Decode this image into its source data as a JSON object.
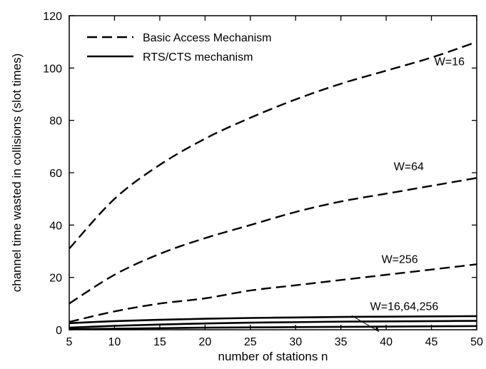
{
  "chart_data": {
    "type": "line",
    "title": "",
    "xlabel": "number of stations n",
    "ylabel": "channel time wasted in collisions (slot times)",
    "xlim": [
      5,
      50
    ],
    "ylim": [
      0,
      120
    ],
    "xticks": [
      5,
      10,
      15,
      20,
      25,
      30,
      35,
      40,
      45,
      50
    ],
    "yticks": [
      0,
      20,
      40,
      60,
      80,
      100,
      120
    ],
    "grid": false,
    "legend_position": "top-left",
    "legend": [
      {
        "label": "Basic Access Mechanism",
        "style": "dashed"
      },
      {
        "label": "RTS/CTS mechanism",
        "style": "solid"
      }
    ],
    "x": [
      5,
      10,
      15,
      20,
      25,
      30,
      35,
      40,
      45,
      50
    ],
    "series": [
      {
        "group": "Basic Access Mechanism",
        "W": "16",
        "style": "dashed",
        "values": [
          31,
          50,
          63,
          73,
          81,
          88,
          94,
          99,
          104,
          110
        ]
      },
      {
        "group": "Basic Access Mechanism",
        "W": "64",
        "style": "dashed",
        "values": [
          10,
          21,
          29,
          35,
          40,
          45,
          49,
          52,
          55,
          58
        ]
      },
      {
        "group": "Basic Access Mechanism",
        "W": "256",
        "style": "dashed",
        "values": [
          3,
          7,
          10,
          12,
          15,
          17,
          19,
          21,
          23,
          25
        ]
      },
      {
        "group": "RTS/CTS mechanism",
        "W": "16",
        "style": "solid",
        "values": [
          2.5,
          3.3,
          3.8,
          4.2,
          4.5,
          4.7,
          4.9,
          5.0,
          5.1,
          5.2
        ]
      },
      {
        "group": "RTS/CTS mechanism",
        "W": "64",
        "style": "solid",
        "values": [
          0.8,
          1.5,
          2.0,
          2.4,
          2.7,
          2.9,
          3.1,
          3.2,
          3.3,
          3.4
        ]
      },
      {
        "group": "RTS/CTS mechanism",
        "W": "256",
        "style": "solid",
        "values": [
          0.2,
          0.4,
          0.6,
          0.8,
          0.9,
          1.0,
          1.1,
          1.2,
          1.3,
          1.4
        ]
      }
    ],
    "annotations": [
      {
        "text": "W=16",
        "at": [
          47,
          101
        ]
      },
      {
        "text": "W=64",
        "at": [
          42.5,
          61
        ]
      },
      {
        "text": "W=256",
        "at": [
          41.5,
          25.5
        ]
      },
      {
        "text": "W=16,64,256",
        "at": [
          42,
          7.5
        ]
      }
    ]
  }
}
